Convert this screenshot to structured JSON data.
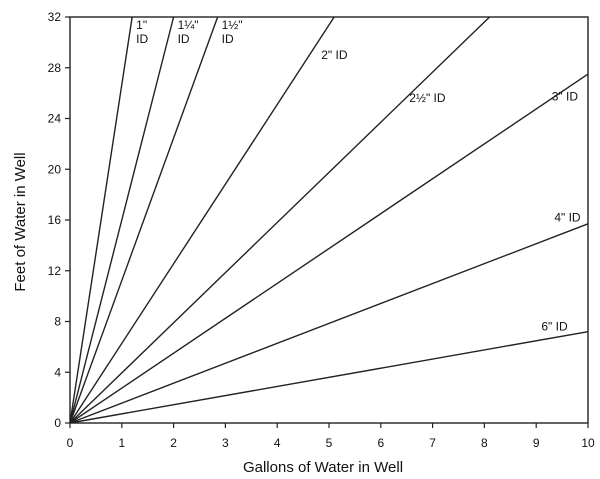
{
  "chart_data": {
    "type": "line",
    "xlabel": "Gallons of Water in Well",
    "ylabel": "Feet of Water in Well",
    "xlim": [
      0,
      10
    ],
    "ylim": [
      0,
      32
    ],
    "xticks": [
      0,
      1,
      2,
      3,
      4,
      5,
      6,
      7,
      8,
      9,
      10
    ],
    "yticks": [
      0,
      4,
      8,
      12,
      16,
      20,
      24,
      28,
      32
    ],
    "grid": false,
    "legend": "none",
    "line_color": "#222222",
    "series": [
      {
        "label_lines": [
          "1\"",
          "ID"
        ],
        "x": [
          0,
          1.2
        ],
        "y": [
          0,
          32
        ]
      },
      {
        "label_lines": [
          "1¼\"",
          "ID"
        ],
        "x": [
          0,
          2.0
        ],
        "y": [
          0,
          32
        ]
      },
      {
        "label_lines": [
          "1½\"",
          "ID"
        ],
        "x": [
          0,
          2.85
        ],
        "y": [
          0,
          32
        ]
      },
      {
        "label_lines": [
          "2\" ID"
        ],
        "x": [
          0,
          5.1
        ],
        "y": [
          0,
          32
        ]
      },
      {
        "label_lines": [
          "2½\" ID"
        ],
        "x": [
          0,
          8.1
        ],
        "y": [
          0,
          32
        ]
      },
      {
        "label_lines": [
          "3\" ID"
        ],
        "x": [
          0,
          10
        ],
        "y": [
          0,
          27.5
        ]
      },
      {
        "label_lines": [
          "4\" ID"
        ],
        "x": [
          0,
          10
        ],
        "y": [
          0,
          15.7
        ]
      },
      {
        "label_lines": [
          "6\" ID"
        ],
        "x": [
          0,
          10
        ],
        "y": [
          0,
          7.2
        ]
      }
    ]
  }
}
